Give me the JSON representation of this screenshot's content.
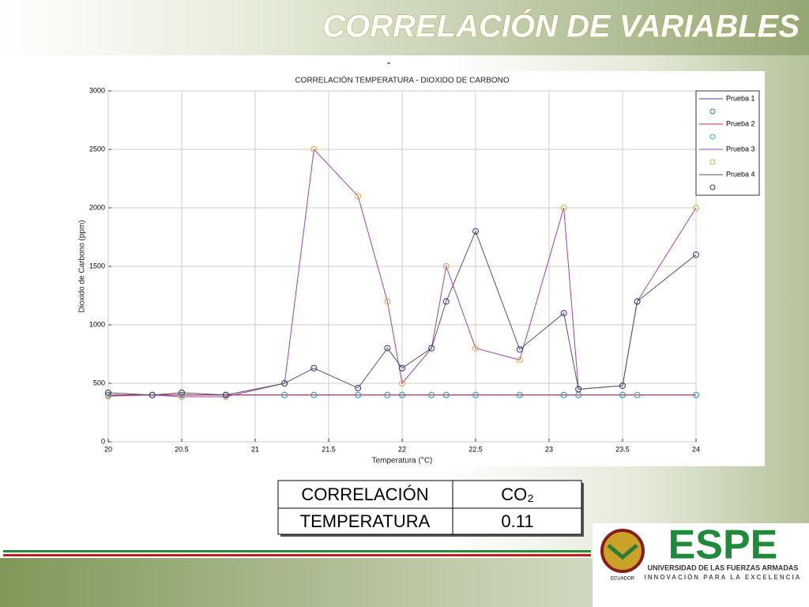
{
  "slide": {
    "title": "CORRELACIÓN DE VARIABLES",
    "dash": "-"
  },
  "chart_data": {
    "type": "line",
    "title": "CORRELACIÓN TEMPERATURA - DIOXIDO DE CARBONO",
    "x_label": "Temperatura (°C)",
    "y_label": "Dioxido de Carbono (ppm)",
    "x": [
      20,
      20.3,
      20.5,
      20.8,
      21.2,
      21.4,
      21.7,
      21.9,
      22,
      22.2,
      22.3,
      22.5,
      22.8,
      23.1,
      23.2,
      23.5,
      23.6,
      24
    ],
    "series": [
      {
        "name": "Prueba 1",
        "color": "#3b4aa0",
        "marker_color": "#2e8b3a",
        "values": [
          400,
          400,
          400,
          400,
          400,
          400,
          400,
          400,
          400,
          400,
          400,
          400,
          400,
          400,
          400,
          400,
          400,
          400
        ]
      },
      {
        "name": "Prueba 2",
        "color": "#c0304a",
        "marker_color": "#3aa8d0",
        "values": [
          400,
          400,
          400,
          400,
          400,
          400,
          400,
          400,
          400,
          400,
          400,
          400,
          400,
          400,
          400,
          400,
          400,
          400
        ]
      },
      {
        "name": "Prueba 3",
        "color": "#a040b0",
        "marker_color": "#d0b040",
        "values": [
          390,
          400,
          385,
          385,
          500,
          2500,
          2100,
          1200,
          500,
          800,
          1500,
          800,
          700,
          2000,
          450,
          480,
          1200,
          2000
        ]
      },
      {
        "name": "Prueba 4",
        "color": "#555555",
        "marker_color": "#303080",
        "values": [
          420,
          400,
          420,
          400,
          500,
          630,
          460,
          800,
          630,
          800,
          1200,
          1800,
          790,
          1100,
          450,
          480,
          1200,
          1600
        ]
      }
    ],
    "xlim": [
      20,
      24
    ],
    "ylim": [
      0,
      3000
    ],
    "xticks": [
      20,
      20.5,
      21,
      21.5,
      22,
      22.5,
      23,
      23.5,
      24
    ],
    "yticks": [
      0,
      500,
      1000,
      1500,
      2000,
      2500,
      3000
    ],
    "grid": true,
    "legend": "upper right"
  },
  "table": {
    "rows": [
      [
        "CORRELACIÓN",
        "CO₂"
      ],
      [
        "TEMPERATURA",
        "0.11"
      ]
    ]
  },
  "logo": {
    "name": "ESPE",
    "line1": "UNIVERSIDAD DE LAS FUERZAS ARMADAS",
    "line2": "INNOVACIÓN PARA LA EXCELENCIA",
    "country": "ECUADOR"
  }
}
